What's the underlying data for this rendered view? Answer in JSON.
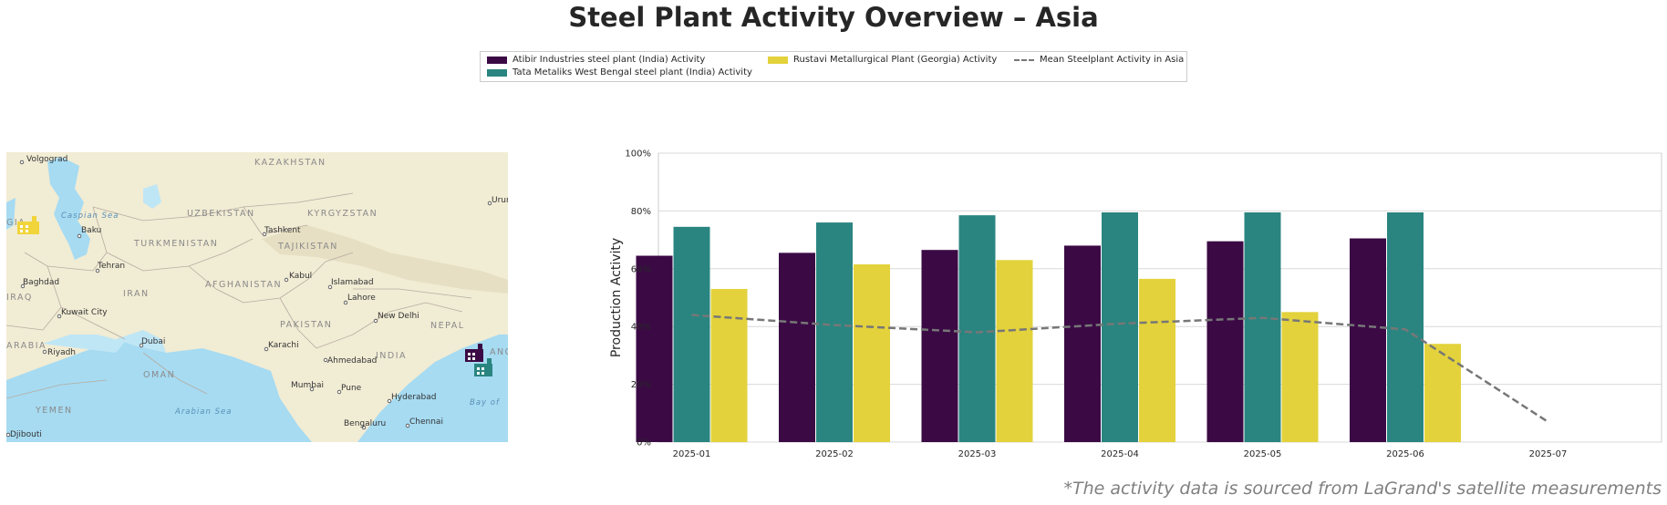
{
  "title": "Steel Plant Activity Overview – Asia",
  "footnote": "*The activity data is sourced from LaGrand's satellite measurements",
  "legend": {
    "items": [
      {
        "label": "Atibir Industries steel plant (India) Activity",
        "color": "#3b0a45"
      },
      {
        "label": "Tata Metaliks West Bengal steel plant (India) Activity",
        "color": "#2a8580"
      },
      {
        "label": "Rustavi Metallurgical Plant (Georgia) Activity",
        "color": "#e3d23b"
      },
      {
        "label": "Mean Steelplant Activity in Asia",
        "color": "#777777"
      }
    ]
  },
  "map": {
    "cities": [
      "Volgograd",
      "Baku",
      "Tashkent",
      "Tehran",
      "Baghdad",
      "Kabul",
      "Islamabad",
      "Lahore",
      "Kuwait City",
      "New Delhi",
      "Dubai",
      "Riyadh",
      "Karachi",
      "Ahmedabad",
      "Mumbai",
      "Pune",
      "Hyderabad",
      "Bengaluru",
      "Chennai",
      "Djibouti",
      "Urur"
    ],
    "countries": [
      "KAZAKHSTAN",
      "UZBEKISTAN",
      "KYRGYZSTAN",
      "TURKMENISTAN",
      "TAJIKISTAN",
      "IRAN",
      "AFGHANISTAN",
      "PAKISTAN",
      "INDIA",
      "NEPAL",
      "OMAN",
      "ARABIA",
      "YEMEN",
      "IRAQ",
      "GIA",
      "ANG"
    ],
    "seas": [
      "Caspian Sea",
      "Arabian Sea",
      "Bay of"
    ],
    "markers": [
      {
        "plant": "Rustavi Metallurgical Plant (Georgia)",
        "icon": "factory-icon",
        "color": "#f0d43a"
      },
      {
        "plant": "Atibir Industries steel plant (India)",
        "icon": "factory-icon",
        "color": "#3b0a45"
      },
      {
        "plant": "Tata Metaliks West Bengal steel plant (India)",
        "icon": "factory-icon",
        "color": "#2a8580"
      }
    ]
  },
  "chart_data": {
    "type": "bar",
    "ylabel": "Production Activity",
    "xlabel": "",
    "ylim": [
      0,
      100
    ],
    "yticks": [
      "0%",
      "20%",
      "40%",
      "60%",
      "80%",
      "100%"
    ],
    "grid": true,
    "categories": [
      "2025-01",
      "2025-02",
      "2025-03",
      "2025-04",
      "2025-05",
      "2025-06",
      "2025-07"
    ],
    "series": [
      {
        "name": "Atibir Industries steel plant (India) Activity",
        "color": "#3b0a45",
        "values": [
          64.5,
          65.5,
          66.5,
          68,
          69.5,
          70.5,
          null
        ]
      },
      {
        "name": "Tata Metaliks West Bengal steel plant (India) Activity",
        "color": "#2a8580",
        "values": [
          74.5,
          76,
          78.5,
          79.5,
          79.5,
          79.5,
          null
        ]
      },
      {
        "name": "Rustavi Metallurgical Plant (Georgia) Activity",
        "color": "#e3d23b",
        "values": [
          53,
          61.5,
          63,
          56.5,
          45,
          34,
          null
        ]
      }
    ],
    "line": {
      "name": "Mean Steelplant Activity in Asia",
      "color": "#777777",
      "style": "dashed",
      "values": [
        44,
        40.5,
        38,
        41,
        43,
        39,
        7
      ]
    }
  }
}
